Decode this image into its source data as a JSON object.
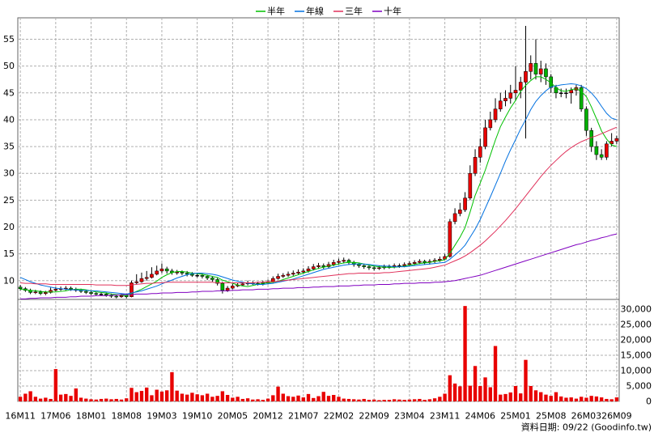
{
  "chart_data": {
    "type": "candlestick",
    "categories": [
      "16M11",
      null,
      null,
      null,
      null,
      null,
      null,
      "17M06",
      null,
      null,
      null,
      null,
      null,
      null,
      "18M01",
      null,
      null,
      null,
      null,
      null,
      null,
      "18M08",
      null,
      null,
      null,
      null,
      null,
      null,
      "19M03",
      null,
      null,
      null,
      null,
      null,
      null,
      "19M10",
      null,
      null,
      null,
      null,
      null,
      null,
      "20M05",
      null,
      null,
      null,
      null,
      null,
      null,
      "20M12",
      null,
      null,
      null,
      null,
      null,
      null,
      "21M07",
      null,
      null,
      null,
      null,
      null,
      null,
      "22M02",
      null,
      null,
      null,
      null,
      null,
      null,
      "22M09",
      null,
      null,
      null,
      null,
      null,
      null,
      "23M04",
      null,
      null,
      null,
      null,
      null,
      null,
      "23M11",
      null,
      null,
      null,
      null,
      null,
      null,
      "24M06",
      null,
      null,
      null,
      null,
      null,
      null,
      "25M01",
      null,
      null,
      null,
      null,
      null,
      null,
      "25M08",
      null,
      null,
      null,
      null,
      null,
      null,
      "26M03",
      null,
      null,
      null,
      null,
      null,
      "26M09"
    ],
    "open": [
      8.8,
      8.5,
      8.2,
      7.8,
      7.9,
      7.6,
      7.8,
      8.2,
      8.4,
      8.5,
      8.6,
      8.4,
      8.2,
      8.0,
      7.8,
      7.6,
      7.5,
      7.5,
      7.3,
      7.1,
      7.0,
      7.2,
      7.0,
      9.6,
      9.8,
      10.4,
      10.6,
      11.2,
      11.8,
      12.2,
      11.8,
      11.5,
      11.6,
      11.4,
      11.2,
      11.0,
      11.0,
      10.8,
      10.5,
      10.2,
      9.5,
      8.2,
      8.6,
      9.0,
      9.2,
      9.4,
      9.6,
      9.5,
      9.4,
      9.6,
      9.8,
      10.4,
      10.8,
      11.0,
      11.2,
      11.4,
      11.6,
      11.8,
      12.2,
      12.6,
      12.8,
      12.6,
      13.0,
      13.4,
      13.6,
      13.8,
      13.4,
      13.0,
      12.8,
      12.6,
      12.4,
      12.3,
      12.4,
      12.6,
      12.6,
      12.8,
      12.8,
      13.0,
      13.2,
      13.4,
      13.6,
      13.4,
      13.6,
      13.8,
      14.0,
      14.5,
      21.0,
      22.5,
      23.2,
      25.4,
      30.0,
      33.0,
      35.0,
      38.5,
      40.0,
      42.0,
      43.5,
      44.0,
      45.0,
      45.5,
      47.0,
      49.0,
      50.5,
      48.5,
      49.5,
      48.0,
      46.0,
      45.0,
      45.0,
      45.0,
      45.5,
      46.0,
      42.0,
      38.0,
      35.0,
      33.5,
      33.0,
      35.5,
      36.0
    ],
    "high": [
      9.2,
      8.8,
      8.5,
      8.3,
      8.2,
      8.1,
      8.7,
      8.8,
      8.9,
      9.0,
      8.9,
      8.7,
      8.5,
      8.3,
      8.1,
      7.9,
      7.8,
      7.8,
      7.6,
      7.4,
      7.6,
      7.5,
      10.0,
      11.2,
      11.5,
      11.8,
      12.5,
      12.8,
      13.2,
      12.6,
      12.2,
      12.0,
      11.9,
      11.8,
      11.6,
      11.4,
      11.3,
      11.1,
      10.8,
      10.5,
      9.8,
      9.0,
      9.4,
      9.6,
      9.8,
      10.0,
      9.9,
      9.8,
      10.0,
      10.2,
      10.8,
      11.3,
      11.4,
      11.7,
      11.9,
      12.1,
      12.3,
      12.7,
      13.1,
      13.3,
      13.2,
      13.5,
      13.9,
      14.1,
      14.3,
      14.1,
      13.7,
      13.3,
      13.1,
      12.9,
      12.7,
      12.8,
      13.0,
      13.0,
      13.2,
      13.2,
      13.4,
      13.6,
      13.8,
      14.0,
      13.9,
      14.0,
      14.2,
      14.5,
      15.0,
      21.5,
      23.5,
      24.5,
      26.5,
      31.5,
      34.5,
      36.5,
      40.0,
      41.5,
      44.0,
      45.0,
      45.5,
      46.5,
      50.0,
      48.0,
      57.5,
      52.0,
      55.0,
      51.0,
      50.5,
      48.5,
      46.5,
      45.8,
      45.8,
      46.0,
      46.5,
      46.5,
      42.5,
      38.5,
      36.0,
      34.5,
      36.0,
      37.5,
      37.0
    ],
    "low": [
      8.2,
      7.9,
      7.5,
      7.5,
      7.3,
      7.3,
      7.6,
      8.0,
      8.1,
      8.2,
      8.1,
      7.9,
      7.7,
      7.5,
      7.3,
      7.2,
      7.2,
      7.0,
      6.8,
      6.7,
      6.8,
      6.7,
      6.9,
      9.3,
      9.6,
      10.0,
      10.4,
      11.0,
      11.4,
      11.3,
      11.1,
      11.1,
      11.0,
      10.8,
      10.7,
      10.6,
      10.4,
      10.1,
      9.8,
      9.1,
      7.6,
      7.9,
      8.4,
      8.8,
      9.0,
      9.1,
      9.2,
      9.1,
      9.1,
      9.3,
      9.6,
      10.2,
      10.5,
      10.7,
      10.9,
      11.1,
      11.3,
      11.5,
      11.9,
      12.2,
      12.2,
      12.3,
      12.7,
      13.0,
      13.2,
      13.0,
      12.6,
      12.4,
      12.2,
      12.0,
      11.9,
      12.0,
      12.1,
      12.2,
      12.3,
      12.4,
      12.5,
      12.7,
      12.9,
      13.1,
      13.0,
      13.0,
      13.3,
      13.5,
      13.8,
      14.3,
      20.5,
      22.0,
      22.8,
      25.0,
      29.5,
      32.0,
      34.5,
      38.0,
      39.5,
      41.5,
      42.5,
      43.0,
      43.5,
      44.0,
      36.5,
      47.5,
      47.5,
      47.0,
      46.5,
      45.0,
      44.0,
      44.2,
      44.0,
      43.0,
      44.5,
      41.5,
      37.0,
      34.0,
      32.5,
      32.5,
      32.5,
      35.0,
      35.5
    ],
    "close": [
      8.5,
      8.2,
      7.8,
      7.9,
      7.6,
      7.8,
      8.2,
      8.4,
      8.5,
      8.6,
      8.4,
      8.2,
      8.0,
      7.8,
      7.6,
      7.5,
      7.5,
      7.3,
      7.1,
      7.0,
      7.2,
      7.0,
      9.6,
      9.8,
      10.4,
      10.6,
      11.2,
      11.8,
      12.2,
      11.8,
      11.5,
      11.6,
      11.4,
      11.2,
      11.0,
      11.0,
      10.8,
      10.5,
      10.2,
      9.5,
      8.2,
      8.6,
      9.0,
      9.2,
      9.4,
      9.6,
      9.5,
      9.4,
      9.6,
      9.8,
      10.4,
      10.8,
      11.0,
      11.2,
      11.4,
      11.6,
      11.8,
      12.2,
      12.6,
      12.8,
      12.6,
      13.0,
      13.4,
      13.6,
      13.8,
      13.4,
      13.0,
      12.8,
      12.6,
      12.4,
      12.3,
      12.4,
      12.6,
      12.6,
      12.8,
      12.8,
      13.0,
      13.2,
      13.4,
      13.6,
      13.4,
      13.6,
      13.8,
      14.0,
      14.5,
      21.0,
      22.5,
      23.2,
      25.4,
      30.0,
      33.0,
      35.0,
      38.5,
      40.0,
      42.0,
      43.5,
      44.0,
      45.0,
      45.5,
      47.0,
      49.0,
      50.5,
      48.5,
      49.5,
      48.0,
      46.0,
      45.0,
      45.0,
      45.0,
      45.5,
      46.0,
      42.0,
      38.0,
      35.0,
      33.5,
      33.0,
      35.5,
      36.0,
      36.5
    ],
    "up_color": "#e80000",
    "down_color": "#00b000",
    "ylim": [
      6.5,
      59
    ],
    "yticks": [
      10,
      15,
      20,
      25,
      30,
      35,
      40,
      45,
      50,
      55
    ],
    "grid": true,
    "series": [
      {
        "name": "半年",
        "color": "#00c000",
        "values": [
          8.4,
          8.3,
          8.2,
          8.1,
          8.0,
          7.9,
          7.9,
          7.9,
          8.0,
          8.1,
          8.3,
          8.4,
          8.4,
          8.3,
          8.1,
          7.9,
          7.8,
          7.7,
          7.5,
          7.4,
          7.3,
          7.2,
          7.6,
          8.0,
          8.4,
          8.9,
          9.4,
          9.9,
          10.6,
          11.1,
          11.5,
          11.7,
          11.7,
          11.6,
          11.4,
          11.3,
          11.2,
          11.0,
          10.8,
          10.6,
          10.1,
          9.8,
          9.5,
          9.2,
          9.0,
          8.9,
          9.1,
          9.3,
          9.5,
          9.6,
          9.7,
          9.9,
          10.2,
          10.5,
          10.8,
          11.1,
          11.4,
          11.7,
          12.0,
          12.3,
          12.5,
          12.7,
          12.9,
          13.1,
          13.3,
          13.4,
          13.4,
          13.3,
          13.1,
          12.9,
          12.7,
          12.6,
          12.5,
          12.5,
          12.5,
          12.6,
          12.7,
          12.9,
          13.0,
          13.2,
          13.3,
          13.4,
          13.6,
          13.7,
          13.9,
          15.1,
          16.6,
          18.1,
          19.9,
          22.8,
          25.9,
          28.2,
          30.6,
          33.4,
          36.2,
          38.7,
          40.5,
          42.2,
          43.6,
          45.3,
          46.4,
          47.3,
          48.0,
          48.0,
          47.5,
          46.9,
          46.0,
          45.4,
          45.3,
          45.6,
          45.8,
          45.3,
          44.3,
          42.4,
          40.2,
          37.9,
          36.4,
          35.3,
          35.0
        ]
      },
      {
        "name": "年線",
        "color": "#0070e0",
        "values": [
          10.6,
          10.2,
          9.8,
          9.5,
          9.2,
          9.0,
          8.8,
          8.6,
          8.5,
          8.4,
          8.3,
          8.3,
          8.2,
          8.2,
          8.1,
          8.1,
          8.0,
          7.9,
          7.8,
          7.7,
          7.6,
          7.5,
          7.7,
          7.9,
          8.1,
          8.4,
          8.7,
          9.0,
          9.4,
          9.8,
          10.1,
          10.5,
          10.8,
          11.1,
          11.3,
          11.4,
          11.4,
          11.3,
          11.2,
          11.0,
          10.7,
          10.4,
          10.1,
          9.9,
          9.7,
          9.5,
          9.4,
          9.3,
          9.3,
          9.4,
          9.5,
          9.7,
          9.9,
          10.1,
          10.3,
          10.6,
          10.9,
          11.2,
          11.5,
          11.8,
          12.1,
          12.3,
          12.5,
          12.7,
          12.9,
          13.0,
          13.1,
          13.1,
          13.1,
          13.0,
          12.9,
          12.8,
          12.7,
          12.7,
          12.6,
          12.6,
          12.6,
          12.7,
          12.8,
          12.9,
          13.0,
          13.1,
          13.2,
          13.3,
          13.4,
          14.0,
          14.8,
          15.6,
          16.6,
          18.1,
          19.6,
          21.4,
          23.5,
          25.6,
          27.8,
          30.0,
          32.3,
          34.4,
          36.3,
          38.3,
          40.0,
          41.9,
          43.4,
          44.5,
          45.4,
          46.1,
          46.3,
          46.5,
          46.6,
          46.7,
          46.6,
          46.3,
          45.8,
          45.0,
          43.9,
          42.5,
          41.2,
          40.3,
          40.0
        ]
      },
      {
        "name": "三年",
        "color": "#e0305a",
        "values": [
          9.6,
          9.5,
          9.5,
          9.4,
          9.4,
          9.4,
          9.3,
          9.3,
          9.3,
          9.3,
          9.3,
          9.3,
          9.3,
          9.3,
          9.3,
          9.2,
          9.2,
          9.2,
          9.2,
          9.1,
          9.1,
          9.1,
          9.2,
          9.3,
          9.4,
          9.5,
          9.5,
          9.6,
          9.6,
          9.7,
          9.7,
          9.7,
          9.7,
          9.7,
          9.7,
          9.7,
          9.7,
          9.7,
          9.7,
          9.6,
          9.6,
          9.6,
          9.6,
          9.6,
          9.6,
          9.6,
          9.6,
          9.7,
          9.7,
          9.8,
          9.8,
          9.9,
          10.0,
          10.1,
          10.2,
          10.3,
          10.4,
          10.5,
          10.6,
          10.7,
          10.8,
          10.9,
          11.0,
          11.1,
          11.2,
          11.3,
          11.3,
          11.4,
          11.4,
          11.4,
          11.4,
          11.4,
          11.5,
          11.5,
          11.6,
          11.7,
          11.8,
          11.9,
          12.0,
          12.1,
          12.2,
          12.3,
          12.5,
          12.7,
          12.9,
          13.3,
          13.7,
          14.1,
          14.6,
          15.2,
          15.9,
          16.6,
          17.4,
          18.3,
          19.2,
          20.2,
          21.2,
          22.3,
          23.4,
          24.6,
          25.8,
          27.0,
          28.2,
          29.4,
          30.5,
          31.5,
          32.4,
          33.3,
          34.1,
          34.8,
          35.4,
          35.9,
          36.3,
          36.7,
          37.0,
          37.4,
          37.8,
          38.2,
          38.6
        ]
      },
      {
        "name": "十年",
        "color": "#8000c0",
        "values": [
          6.6,
          6.6,
          6.7,
          6.7,
          6.8,
          6.8,
          6.8,
          6.9,
          6.9,
          6.9,
          7.0,
          7.0,
          7.1,
          7.1,
          7.1,
          7.2,
          7.2,
          7.2,
          7.3,
          7.3,
          7.4,
          7.4,
          7.4,
          7.5,
          7.5,
          7.5,
          7.6,
          7.6,
          7.7,
          7.7,
          7.7,
          7.8,
          7.8,
          7.8,
          7.9,
          7.9,
          8.0,
          8.0,
          8.0,
          8.1,
          8.1,
          8.1,
          8.2,
          8.2,
          8.3,
          8.3,
          8.3,
          8.4,
          8.4,
          8.4,
          8.5,
          8.5,
          8.6,
          8.6,
          8.6,
          8.7,
          8.7,
          8.7,
          8.8,
          8.8,
          8.9,
          8.9,
          8.9,
          9.0,
          9.0,
          9.0,
          9.1,
          9.1,
          9.2,
          9.2,
          9.2,
          9.3,
          9.3,
          9.3,
          9.4,
          9.4,
          9.5,
          9.5,
          9.5,
          9.6,
          9.6,
          9.6,
          9.7,
          9.7,
          9.8,
          9.9,
          10.0,
          10.2,
          10.4,
          10.6,
          10.8,
          11.0,
          11.3,
          11.6,
          11.9,
          12.2,
          12.5,
          12.8,
          13.1,
          13.4,
          13.7,
          14.0,
          14.3,
          14.6,
          14.9,
          15.2,
          15.5,
          15.8,
          16.1,
          16.4,
          16.7,
          16.9,
          17.2,
          17.5,
          17.7,
          18.0,
          18.2,
          18.5,
          18.7
        ]
      }
    ],
    "volume": {
      "color": "#e80000",
      "values": [
        1500,
        2500,
        3300,
        1500,
        900,
        1200,
        800,
        10500,
        2200,
        2400,
        1800,
        4200,
        1200,
        900,
        700,
        600,
        800,
        900,
        700,
        800,
        600,
        1000,
        4400,
        3000,
        3400,
        4500,
        2000,
        3800,
        3200,
        3600,
        9500,
        3500,
        2500,
        2200,
        2800,
        2300,
        2000,
        2500,
        1500,
        1800,
        3300,
        2100,
        1200,
        1500,
        800,
        1000,
        600,
        700,
        500,
        900,
        2000,
        4800,
        2500,
        1700,
        1500,
        1900,
        1300,
        2400,
        1100,
        1700,
        3100,
        1800,
        2100,
        1500,
        900,
        800,
        700,
        600,
        800,
        500,
        600,
        400,
        500,
        500,
        700,
        600,
        500,
        600,
        700,
        800,
        500,
        700,
        1000,
        1500,
        2500,
        8500,
        5800,
        4900,
        31000,
        5100,
        11500,
        5000,
        7800,
        4600,
        18000,
        2200,
        2400,
        2900,
        5000,
        2600,
        13500,
        5000,
        3600,
        3000,
        2200,
        1800,
        3000,
        1600,
        1200,
        1300,
        900,
        1500,
        1200,
        1800,
        1600,
        1300,
        800,
        700,
        1300
      ],
      "ylim": [
        0,
        31300
      ],
      "yticks": [
        0,
        {
          "value": 5000,
          "label": "5,000"
        },
        {
          "value": 10000,
          "label": "10,000"
        },
        {
          "value": 15000,
          "label": "15,000"
        },
        {
          "value": 20000,
          "label": "20,000"
        },
        {
          "value": 25000,
          "label": "25,000"
        },
        {
          "value": 30000,
          "label": "30,000"
        }
      ]
    },
    "source": "資料日期: 09/22 (Goodinfo.tw)"
  }
}
